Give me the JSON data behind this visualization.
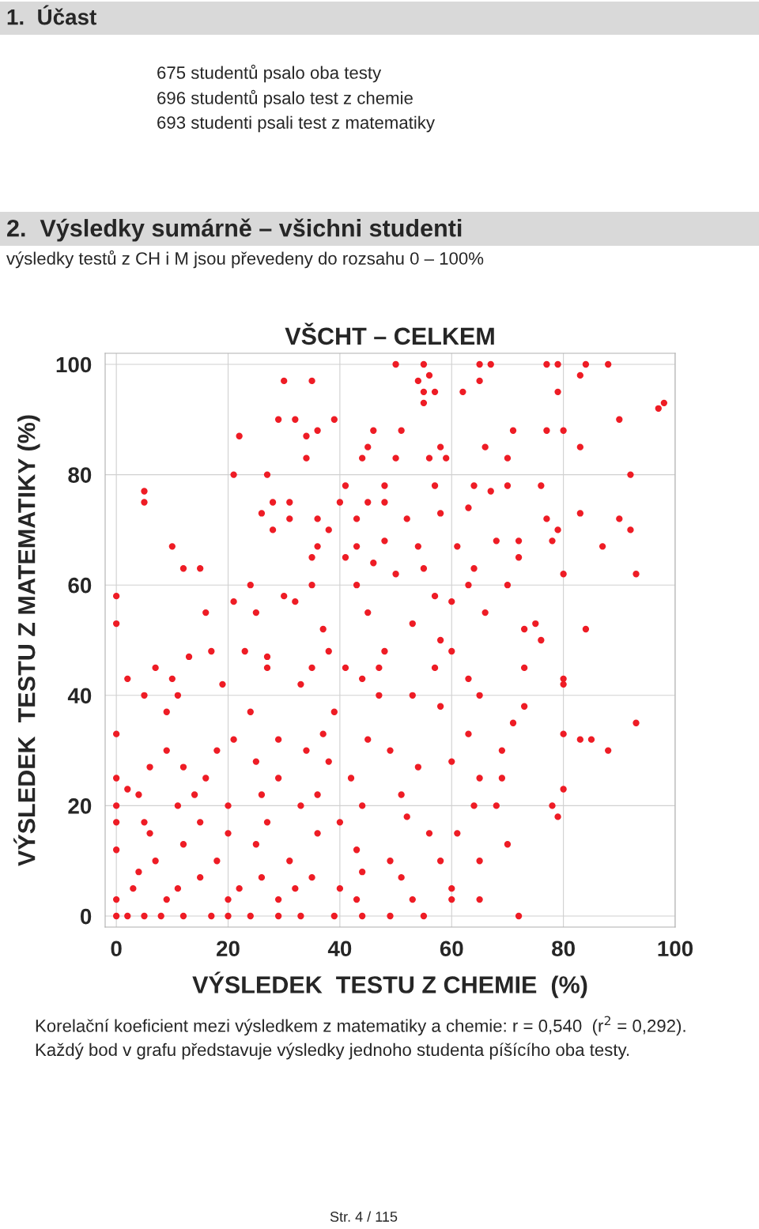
{
  "chart_data": {
    "type": "scatter",
    "title": "VŠCHT – CELKEM",
    "xlabel": "VÝSLEDEK  TESTU Z CHEMIE  (%)",
    "ylabel": "VÝSLEDEK  TESTU Z MATEMATIKY (%)",
    "annotations": [
      "1.  Účast",
      "675 studentů psalo oba testy",
      "696 studentů psalo test z chemie",
      "693 studenti psali test z matematiky",
      "2.  Výsledky sumárně – všichni studenti",
      "výsledky testů z CH i M jsou převedeny do rozsahu 0 – 100%",
      "Korelační koeficient mezi výsledkem z matematiky a chemie: r = 0,540  (r$^{2}$ = 0,292).",
      "Každý bod v grafu představuje výsledky jednoho studenta píšícího oba testy.",
      "Str. 4 / 115"
    ],
    "xlim": [
      -2,
      100
    ],
    "ylim": [
      -2,
      102
    ],
    "xticks": [
      0,
      20,
      40,
      60,
      80,
      100
    ],
    "yticks": [
      0,
      20,
      40,
      60,
      80,
      100
    ],
    "grid": true,
    "marker": "circle",
    "series": [
      {
        "color": "#ee1c25",
        "x": [
          50,
          55,
          65,
          67,
          77,
          79,
          84,
          88,
          30,
          35,
          54,
          56,
          65,
          83,
          55,
          57,
          62,
          79,
          55,
          97,
          98,
          29,
          32,
          39,
          90,
          22,
          34,
          36,
          46,
          51,
          71,
          77,
          80,
          45,
          58,
          66,
          83,
          34,
          44,
          50,
          56,
          59,
          70,
          21,
          27,
          41,
          48,
          57,
          64,
          70,
          76,
          92,
          5,
          5,
          28,
          31,
          40,
          45,
          48,
          26,
          58,
          83,
          31,
          36,
          43,
          52,
          67,
          63,
          77,
          90,
          92,
          28,
          38,
          79,
          10,
          36,
          43,
          48,
          54,
          61,
          68,
          72,
          78,
          87,
          12,
          15,
          35,
          41,
          46,
          55,
          64,
          72,
          93,
          80,
          0,
          24,
          30,
          35,
          43,
          50,
          57,
          63,
          70,
          0,
          16,
          21,
          25,
          32,
          37,
          45,
          53,
          60,
          66,
          73,
          84,
          75,
          17,
          23,
          27,
          38,
          48,
          58,
          60,
          76,
          13,
          7,
          27,
          35,
          41,
          47,
          57,
          73,
          2,
          10,
          19,
          33,
          44,
          63,
          80,
          80,
          5,
          11,
          47,
          53,
          65,
          73,
          9,
          24,
          39,
          58,
          71,
          93,
          0,
          21,
          29,
          37,
          45,
          63,
          83,
          85,
          80,
          88,
          9,
          18,
          34,
          49,
          69,
          6,
          12,
          25,
          38,
          54,
          60,
          0,
          16,
          29,
          42,
          65,
          69,
          2,
          80,
          4,
          14,
          26,
          36,
          51,
          0,
          11,
          20,
          33,
          44,
          64,
          68,
          78,
          79,
          0,
          5,
          15,
          27,
          40,
          52,
          6,
          20,
          36,
          56,
          61,
          0,
          12,
          25,
          43,
          70,
          7,
          18,
          31,
          49,
          58,
          65,
          4,
          15,
          26,
          35,
          44,
          51,
          3,
          11,
          22,
          32,
          40,
          60,
          0,
          9,
          20,
          29,
          43,
          53,
          60,
          65,
          0,
          2,
          5,
          8,
          12,
          17,
          20,
          24,
          29,
          33,
          39,
          44,
          49,
          55,
          72
        ],
        "values": [
          100,
          100,
          100,
          100,
          100,
          100,
          100,
          100,
          97,
          97,
          97,
          98,
          97,
          98,
          95,
          95,
          95,
          95,
          93,
          92,
          93,
          90,
          90,
          90,
          90,
          87,
          87,
          88,
          88,
          88,
          88,
          88,
          88,
          85,
          85,
          85,
          85,
          83,
          83,
          83,
          83,
          83,
          83,
          80,
          80,
          78,
          78,
          78,
          78,
          78,
          78,
          80,
          77,
          75,
          75,
          75,
          75,
          75,
          75,
          73,
          73,
          73,
          72,
          72,
          72,
          72,
          77,
          74,
          72,
          72,
          70,
          70,
          70,
          70,
          67,
          67,
          67,
          68,
          67,
          67,
          68,
          68,
          68,
          67,
          63,
          63,
          65,
          65,
          64,
          63,
          63,
          65,
          62,
          62,
          58,
          60,
          58,
          60,
          60,
          62,
          58,
          60,
          60,
          53,
          55,
          57,
          55,
          57,
          52,
          55,
          53,
          57,
          55,
          52,
          52,
          53,
          48,
          48,
          47,
          48,
          48,
          50,
          48,
          50,
          47,
          45,
          45,
          45,
          45,
          45,
          45,
          45,
          43,
          43,
          42,
          42,
          43,
          43,
          43,
          42,
          40,
          40,
          40,
          40,
          40,
          38,
          37,
          37,
          37,
          38,
          35,
          35,
          33,
          32,
          32,
          33,
          32,
          33,
          32,
          32,
          33,
          30,
          30,
          30,
          30,
          30,
          30,
          27,
          27,
          28,
          28,
          27,
          28,
          25,
          25,
          25,
          25,
          25,
          25,
          23,
          23,
          22,
          22,
          22,
          22,
          22,
          20,
          20,
          20,
          20,
          20,
          20,
          20,
          20,
          18,
          17,
          17,
          17,
          17,
          17,
          18,
          15,
          15,
          15,
          15,
          15,
          12,
          13,
          13,
          12,
          13,
          10,
          10,
          10,
          10,
          10,
          10,
          8,
          7,
          7,
          7,
          8,
          7,
          5,
          5,
          5,
          5,
          5,
          5,
          3,
          3,
          3,
          3,
          3,
          3,
          3,
          3,
          0,
          0,
          0,
          0,
          0,
          0,
          0,
          0,
          0,
          0,
          0,
          0,
          0,
          0,
          0
        ]
      }
    ]
  }
}
